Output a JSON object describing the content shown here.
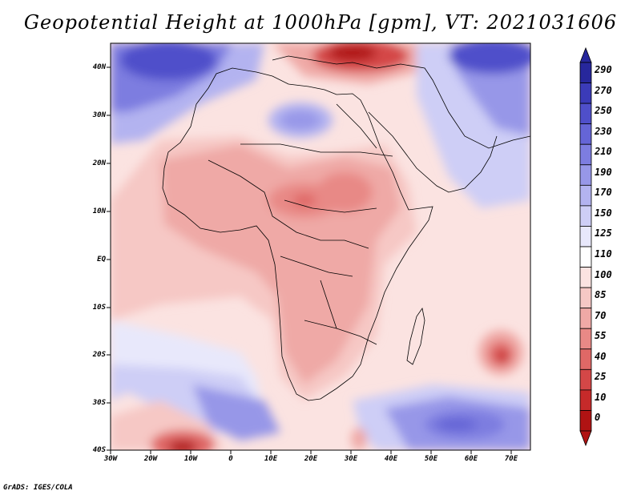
{
  "title": "Geopotential Height at 1000hPa [gpm], VT: 2021031606",
  "credit": "GrADS: IGES/COLA",
  "map": {
    "lat_labels": [
      "40N",
      "30N",
      "20N",
      "10N",
      "EQ",
      "10S",
      "20S",
      "30S",
      "40S"
    ],
    "lon_labels": [
      "30W",
      "20W",
      "10W",
      "0",
      "10E",
      "20E",
      "30E",
      "40E",
      "50E",
      "60E",
      "70E"
    ]
  },
  "colorbar": {
    "levels": [
      "290",
      "270",
      "250",
      "230",
      "210",
      "190",
      "170",
      "150",
      "125",
      "110",
      "100",
      "85",
      "70",
      "55",
      "40",
      "25",
      "10",
      "0"
    ],
    "colors": [
      "#27279c",
      "#3b3bb8",
      "#4f4fca",
      "#6565d6",
      "#7d7de0",
      "#9797e8",
      "#b3b3f0",
      "#ceceF6",
      "#e8e8fb",
      "#ffffff",
      "#fbe3e1",
      "#f6c8c5",
      "#efa9a6",
      "#e88986",
      "#df6866",
      "#d44747",
      "#c62a2a",
      "#b01313"
    ]
  }
}
